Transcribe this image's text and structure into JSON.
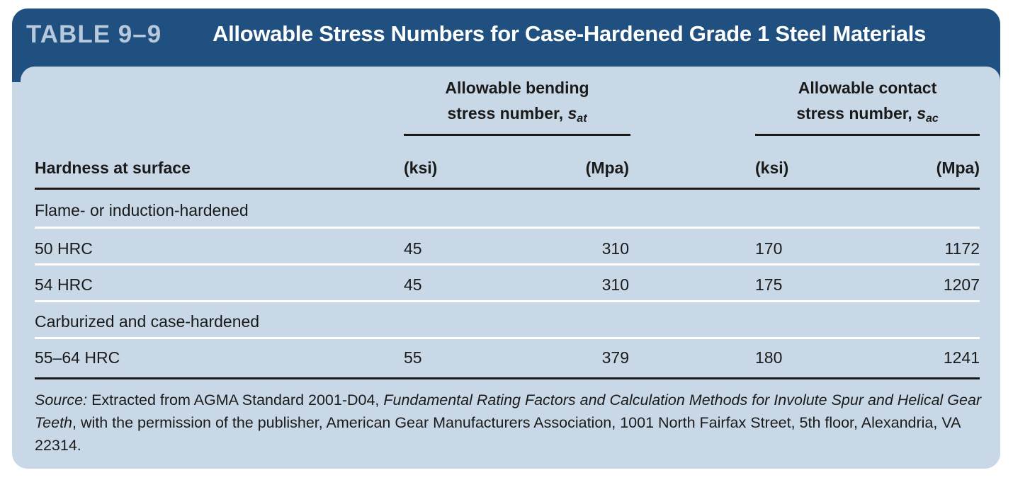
{
  "table_number": "TABLE 9–9",
  "table_title": "Allowable Stress Numbers for Case-Hardened Grade 1 Steel Materials",
  "headers": {
    "row_header": "Hardness at surface",
    "bending_line1": "Allowable bending",
    "bending_line2_prefix": "stress number, ",
    "bending_symbol": "s",
    "bending_subscript": "at",
    "contact_line1": "Allowable contact",
    "contact_line2_prefix": "stress number, ",
    "contact_symbol": "s",
    "contact_subscript": "ac",
    "unit_ksi_1": "(ksi)",
    "unit_mpa_1": "(Mpa)",
    "unit_ksi_2": "(ksi)",
    "unit_mpa_2": "(Mpa)"
  },
  "groups": [
    {
      "label": "Flame- or induction-hardened",
      "rows": [
        {
          "hardness": "50 HRC",
          "bend_ksi": "45",
          "bend_mpa": "310",
          "contact_ksi": "170",
          "contact_mpa": "1172"
        },
        {
          "hardness": "54 HRC",
          "bend_ksi": "45",
          "bend_mpa": "310",
          "contact_ksi": "175",
          "contact_mpa": "1207"
        }
      ]
    },
    {
      "label": "Carburized and case-hardened",
      "rows": [
        {
          "hardness": "55–64 HRC",
          "bend_ksi": "55",
          "bend_mpa": "379",
          "contact_ksi": "180",
          "contact_mpa": "1241"
        }
      ]
    }
  ],
  "source": {
    "label": "Source:",
    "text1": " Extracted from AGMA Standard 2001-D04, ",
    "italic_title": "Fundamental Rating Factors and Calculation Methods for Involute Spur and Helical Gear Teeth",
    "text2": ", with the permission of the publisher, American Gear Manufacturers Association, 1001 North Fairfax Street, 5th floor, Alexandria, VA 22314."
  },
  "colors": {
    "banner": "#205080",
    "panel": "#c9d8e7",
    "table_number": "#b7c9dc"
  }
}
